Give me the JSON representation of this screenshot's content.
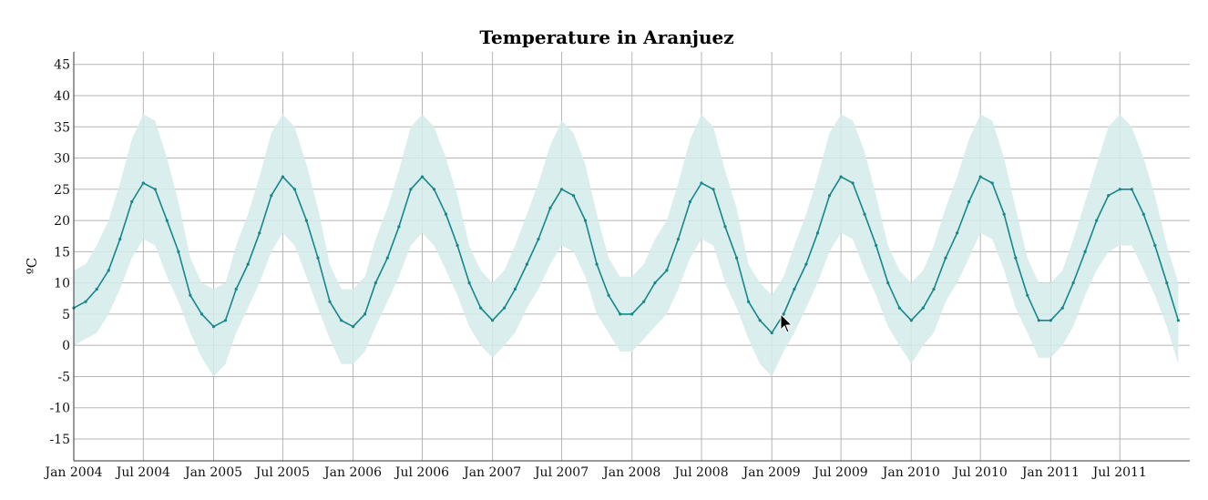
{
  "chart_data": {
    "type": "area",
    "title": "Temperature in Aranjuez",
    "xlabel": "",
    "ylabel": "ºC",
    "ylim": [
      -18.5,
      47
    ],
    "xlim": [
      "2004-01-01",
      "2011-12-31"
    ],
    "yticks": [
      45,
      40,
      35,
      30,
      25,
      20,
      15,
      10,
      5,
      0,
      -5,
      -10,
      -15
    ],
    "xticks": [
      {
        "date": "2004-01-01",
        "label": "Jan 2004"
      },
      {
        "date": "2004-07-01",
        "label": "Jul 2004"
      },
      {
        "date": "2005-01-01",
        "label": "Jan 2005"
      },
      {
        "date": "2005-07-01",
        "label": "Jul 2005"
      },
      {
        "date": "2006-01-01",
        "label": "Jan 2006"
      },
      {
        "date": "2006-07-01",
        "label": "Jul 2006"
      },
      {
        "date": "2007-01-01",
        "label": "Jan 2007"
      },
      {
        "date": "2007-07-01",
        "label": "Jul 2007"
      },
      {
        "date": "2008-01-01",
        "label": "Jan 2008"
      },
      {
        "date": "2008-07-01",
        "label": "Jul 2008"
      },
      {
        "date": "2009-01-01",
        "label": "Jan 2009"
      },
      {
        "date": "2009-07-01",
        "label": "Jul 2009"
      },
      {
        "date": "2010-01-01",
        "label": "Jan 2010"
      },
      {
        "date": "2010-07-01",
        "label": "Jul 2010"
      },
      {
        "date": "2011-01-01",
        "label": "Jan 2011"
      },
      {
        "date": "2011-07-01",
        "label": "Jul 2011"
      }
    ],
    "grid": true,
    "colors": {
      "mean_line": "#16868a",
      "range_band": "#d3ecea"
    },
    "series": [
      {
        "role": "mean",
        "x": [
          "2004-01-01",
          "2004-02-01",
          "2004-03-01",
          "2004-04-01",
          "2004-05-01",
          "2004-06-01",
          "2004-07-01",
          "2004-08-01",
          "2004-09-01",
          "2004-10-01",
          "2004-11-01",
          "2004-12-01",
          "2005-01-01",
          "2005-02-01",
          "2005-03-01",
          "2005-04-01",
          "2005-05-01",
          "2005-06-01",
          "2005-07-01",
          "2005-08-01",
          "2005-09-01",
          "2005-10-01",
          "2005-11-01",
          "2005-12-01",
          "2006-01-01",
          "2006-02-01",
          "2006-03-01",
          "2006-04-01",
          "2006-05-01",
          "2006-06-01",
          "2006-07-01",
          "2006-08-01",
          "2006-09-01",
          "2006-10-01",
          "2006-11-01",
          "2006-12-01",
          "2007-01-01",
          "2007-02-01",
          "2007-03-01",
          "2007-04-01",
          "2007-05-01",
          "2007-06-01",
          "2007-07-01",
          "2007-08-01",
          "2007-09-01",
          "2007-10-01",
          "2007-11-01",
          "2007-12-01",
          "2008-01-01",
          "2008-02-01",
          "2008-03-01",
          "2008-04-01",
          "2008-05-01",
          "2008-06-01",
          "2008-07-01",
          "2008-08-01",
          "2008-09-01",
          "2008-10-01",
          "2008-11-01",
          "2008-12-01",
          "2009-01-01",
          "2009-02-01",
          "2009-03-01",
          "2009-04-01",
          "2009-05-01",
          "2009-06-01",
          "2009-07-01",
          "2009-08-01",
          "2009-09-01",
          "2009-10-01",
          "2009-11-01",
          "2009-12-01",
          "2010-01-01",
          "2010-02-01",
          "2010-03-01",
          "2010-04-01",
          "2010-05-01",
          "2010-06-01",
          "2010-07-01",
          "2010-08-01",
          "2010-09-01",
          "2010-10-01",
          "2010-11-01",
          "2010-12-01",
          "2011-01-01",
          "2011-02-01",
          "2011-03-01",
          "2011-04-01",
          "2011-05-01",
          "2011-06-01",
          "2011-07-01",
          "2011-08-01",
          "2011-09-01",
          "2011-10-01",
          "2011-11-01",
          "2011-12-01"
        ],
        "values": [
          6,
          7,
          9,
          12,
          17,
          23,
          26,
          25,
          20,
          15,
          8,
          5,
          3,
          4,
          9,
          13,
          18,
          24,
          27,
          25,
          20,
          14,
          7,
          4,
          3,
          5,
          10,
          14,
          19,
          25,
          27,
          25,
          21,
          16,
          10,
          6,
          4,
          6,
          9,
          13,
          17,
          22,
          25,
          24,
          20,
          13,
          8,
          5,
          5,
          7,
          10,
          12,
          17,
          23,
          26,
          25,
          19,
          14,
          7,
          4,
          2,
          5,
          9,
          13,
          18,
          24,
          27,
          26,
          21,
          16,
          10,
          6,
          4,
          6,
          9,
          14,
          18,
          23,
          27,
          26,
          21,
          14,
          8,
          4,
          4,
          6,
          10,
          15,
          20,
          24,
          25,
          25,
          21,
          16,
          10,
          4
        ]
      },
      {
        "role": "upper",
        "values": [
          12,
          13,
          16,
          20,
          26,
          33,
          37,
          36,
          30,
          23,
          14,
          10,
          9,
          10,
          16,
          21,
          27,
          34,
          37,
          35,
          29,
          22,
          13,
          9,
          9,
          11,
          17,
          22,
          28,
          35,
          37,
          35,
          30,
          24,
          16,
          12,
          10,
          12,
          16,
          21,
          26,
          32,
          36,
          34,
          29,
          21,
          14,
          11,
          11,
          13,
          17,
          20,
          26,
          33,
          37,
          35,
          28,
          22,
          13,
          10,
          8,
          11,
          16,
          21,
          27,
          34,
          37,
          36,
          31,
          24,
          16,
          12,
          10,
          12,
          16,
          22,
          27,
          33,
          37,
          36,
          30,
          22,
          14,
          10,
          10,
          12,
          17,
          23,
          29,
          35,
          37,
          35,
          30,
          24,
          16,
          10
        ]
      },
      {
        "role": "lower",
        "values": [
          0,
          1,
          2,
          5,
          9,
          14,
          17,
          16,
          11,
          7,
          2,
          -2,
          -5,
          -3,
          2,
          6,
          10,
          15,
          18,
          16,
          11,
          6,
          1,
          -3,
          -3,
          -1,
          3,
          7,
          11,
          16,
          18,
          16,
          12,
          8,
          3,
          0,
          -2,
          0,
          2,
          6,
          9,
          13,
          16,
          15,
          11,
          5,
          2,
          -1,
          -1,
          1,
          3,
          5,
          9,
          14,
          17,
          16,
          10,
          6,
          1,
          -3,
          -5,
          -1,
          2,
          6,
          10,
          15,
          18,
          17,
          12,
          8,
          3,
          0,
          -3,
          0,
          2,
          7,
          10,
          14,
          18,
          17,
          12,
          6,
          2,
          -2,
          -2,
          0,
          3,
          8,
          12,
          15,
          16,
          16,
          12,
          8,
          3,
          -3
        ]
      }
    ]
  }
}
